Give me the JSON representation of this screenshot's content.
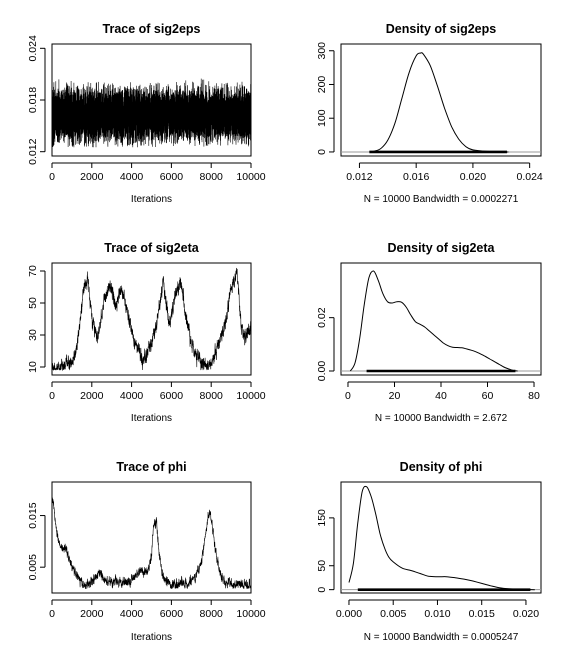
{
  "chart_data": [
    {
      "type": "line",
      "title": "Trace of sig2eps",
      "xlabel": "Iterations",
      "xticks": [
        0,
        2000,
        4000,
        6000,
        8000,
        10000
      ],
      "yticks": [
        0.012,
        0.018,
        0.024
      ],
      "ytick_labels": [
        "0.012",
        "0.018",
        "0.024"
      ],
      "xlim": [
        0,
        10000
      ],
      "ylim": [
        0.0115,
        0.0245
      ],
      "series": [
        {
          "name": "sig2eps",
          "x_range": [
            0,
            10000
          ],
          "n": 10000,
          "level": 0.0163,
          "spread": 0.00145,
          "min": 0.0125,
          "max": 0.0238,
          "smooth": 0.0,
          "seed": 11
        }
      ]
    },
    {
      "type": "line",
      "title": "Density of sig2eps",
      "xlabel": "N = 10000   Bandwidth = 0.0002271",
      "xticks": [
        0.012,
        0.016,
        0.02,
        0.024
      ],
      "xtick_labels": [
        "0.012",
        "0.016",
        "0.020",
        "0.024"
      ],
      "yticks": [
        0,
        100,
        200,
        300
      ],
      "ytick_labels": [
        "0",
        "100",
        "200",
        "300"
      ],
      "xlim": [
        0.0107,
        0.0248
      ],
      "ylim": [
        -12,
        320
      ],
      "x": [
        0.0127,
        0.013,
        0.0135,
        0.014,
        0.0145,
        0.015,
        0.0155,
        0.016,
        0.0163,
        0.0165,
        0.017,
        0.0175,
        0.018,
        0.0185,
        0.019,
        0.0195,
        0.02,
        0.021,
        0.022,
        0.0225
      ],
      "y": [
        0,
        2,
        10,
        35,
        85,
        160,
        235,
        285,
        293,
        290,
        255,
        195,
        130,
        75,
        38,
        16,
        6,
        1.5,
        0.3,
        0
      ],
      "rug": [
        0.0127,
        0.0224
      ]
    },
    {
      "type": "line",
      "title": "Trace of sig2eta",
      "xlabel": "Iterations",
      "xticks": [
        0,
        2000,
        4000,
        6000,
        8000,
        10000
      ],
      "yticks": [
        10,
        30,
        50,
        70
      ],
      "ytick_labels": [
        "10",
        "30",
        "50",
        "70"
      ],
      "xlim": [
        0,
        10000
      ],
      "ylim": [
        5,
        75
      ],
      "series": [
        {
          "name": "sig2eta",
          "x_range": [
            0,
            10000
          ],
          "n": 2000,
          "anchors_x": [
            0,
            500,
            1000,
            1300,
            1600,
            1800,
            2000,
            2300,
            2600,
            2900,
            3200,
            3500,
            3800,
            4200,
            4600,
            5000,
            5300,
            5600,
            5900,
            6200,
            6500,
            6800,
            7100,
            7500,
            7800,
            8100,
            8400,
            8700,
            9000,
            9300,
            9500,
            9700,
            10000
          ],
          "anchors_y": [
            9,
            10,
            13,
            25,
            60,
            65,
            40,
            28,
            50,
            62,
            48,
            60,
            42,
            25,
            15,
            24,
            40,
            64,
            35,
            55,
            62,
            36,
            22,
            12,
            10,
            15,
            26,
            36,
            60,
            70,
            35,
            28,
            34
          ],
          "spread": 4.5,
          "min": 8,
          "max": 72,
          "seed": 5
        }
      ]
    },
    {
      "type": "line",
      "title": "Density of sig2eta",
      "xlabel": "N = 10000   Bandwidth = 2.672",
      "xticks": [
        0,
        20,
        40,
        60,
        80
      ],
      "xtick_labels": [
        "0",
        "20",
        "40",
        "60",
        "80"
      ],
      "yticks": [
        0,
        0.02
      ],
      "ytick_labels": [
        "0.00",
        "0.02"
      ],
      "xlim": [
        -3,
        83
      ],
      "ylim": [
        -0.0015,
        0.0405
      ],
      "x": [
        1,
        3,
        5,
        7,
        9,
        11,
        13,
        15,
        17,
        19,
        21,
        23,
        25,
        27,
        29,
        31,
        33,
        35,
        37,
        39,
        41,
        43,
        45,
        47,
        49,
        51,
        53,
        55,
        57,
        59,
        61,
        63,
        65,
        67,
        69,
        71,
        73
      ],
      "y": [
        0,
        0.003,
        0.012,
        0.025,
        0.035,
        0.0375,
        0.034,
        0.029,
        0.026,
        0.0255,
        0.026,
        0.0258,
        0.024,
        0.021,
        0.0185,
        0.0175,
        0.0165,
        0.015,
        0.0135,
        0.012,
        0.0105,
        0.0095,
        0.0089,
        0.0088,
        0.0087,
        0.0083,
        0.0078,
        0.0072,
        0.0064,
        0.0055,
        0.0045,
        0.0035,
        0.0025,
        0.0015,
        0.0008,
        0.0002,
        0
      ],
      "rug": [
        8,
        72
      ]
    },
    {
      "type": "line",
      "title": "Trace of phi",
      "xlabel": "Iterations",
      "xticks": [
        0,
        2000,
        4000,
        6000,
        8000,
        10000
      ],
      "yticks": [
        0.005,
        0.015
      ],
      "ytick_labels": [
        "0.005",
        "0.015"
      ],
      "xlim": [
        0,
        10000
      ],
      "ylim": [
        0.0,
        0.0215
      ],
      "series": [
        {
          "name": "phi",
          "x_range": [
            0,
            10000
          ],
          "n": 2000,
          "anchors_x": [
            0,
            80,
            200,
            400,
            700,
            1000,
            1300,
            1600,
            2000,
            2400,
            2800,
            3200,
            3600,
            4000,
            4400,
            4800,
            5000,
            5100,
            5250,
            5400,
            5600,
            6000,
            6400,
            6800,
            7200,
            7500,
            7700,
            7850,
            7950,
            8100,
            8300,
            8500,
            8800,
            9200,
            9600,
            10000
          ],
          "anchors_y": [
            0.019,
            0.017,
            0.013,
            0.009,
            0.0085,
            0.005,
            0.003,
            0.0015,
            0.002,
            0.004,
            0.002,
            0.0022,
            0.0018,
            0.0025,
            0.0045,
            0.004,
            0.007,
            0.013,
            0.014,
            0.007,
            0.003,
            0.0015,
            0.002,
            0.0018,
            0.003,
            0.006,
            0.011,
            0.015,
            0.0155,
            0.012,
            0.006,
            0.003,
            0.002,
            0.0015,
            0.0018,
            0.0015
          ],
          "spread": 0.0009,
          "min": 0.0008,
          "max": 0.0205,
          "seed": 9
        }
      ]
    },
    {
      "type": "line",
      "title": "Density of phi",
      "xlabel": "N = 10000   Bandwidth = 0.0005247",
      "xticks": [
        0.0,
        0.005,
        0.01,
        0.015,
        0.02
      ],
      "xtick_labels": [
        "0.000",
        "0.005",
        "0.010",
        "0.015",
        "0.020"
      ],
      "yticks": [
        0,
        50,
        150
      ],
      "ytick_labels": [
        "0",
        "50",
        "150"
      ],
      "xlim": [
        -0.0009,
        0.0217
      ],
      "ylim": [
        -7,
        225
      ],
      "x": [
        0.0,
        0.0005,
        0.001,
        0.0015,
        0.002,
        0.0025,
        0.003,
        0.0035,
        0.004,
        0.0045,
        0.005,
        0.006,
        0.007,
        0.008,
        0.009,
        0.01,
        0.011,
        0.012,
        0.013,
        0.014,
        0.015,
        0.016,
        0.017,
        0.018,
        0.019,
        0.02,
        0.021
      ],
      "y": [
        15,
        55,
        140,
        205,
        215,
        195,
        160,
        118,
        88,
        68,
        58,
        45,
        40,
        34,
        28,
        27,
        27,
        25,
        22,
        18,
        13,
        8,
        4,
        2,
        1,
        0.3,
        0
      ],
      "rug": [
        0.001,
        0.0205
      ]
    }
  ]
}
